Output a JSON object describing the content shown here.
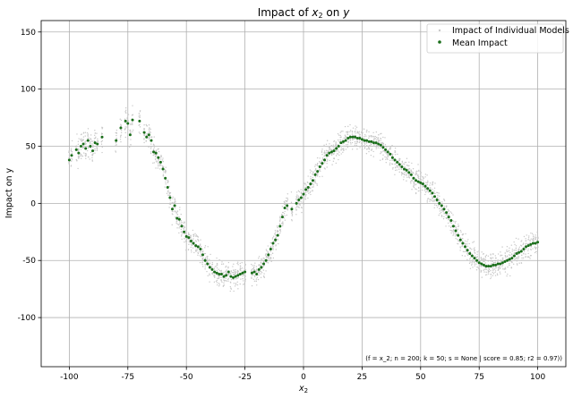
{
  "chart_data": {
    "type": "scatter",
    "title_prefix": "Impact of ",
    "title_x": "x",
    "title_x_sub": "2",
    "title_mid": " on ",
    "title_y": "y",
    "xlabel": "x",
    "xlabel_sub": "2",
    "ylabel": "Impact on y",
    "xlim": [
      -112,
      112
    ],
    "ylim": [
      -143,
      160
    ],
    "xticks": [
      -100,
      -75,
      -50,
      -25,
      0,
      25,
      50,
      75,
      100
    ],
    "xtick_labels": [
      "-100",
      "-75",
      "-50",
      "-25",
      "0",
      "25",
      "50",
      "75",
      "100"
    ],
    "yticks": [
      -100,
      -50,
      0,
      50,
      100,
      150
    ],
    "ytick_labels": [
      "-100",
      "-50",
      "0",
      "50",
      "100",
      "150"
    ],
    "grid": true,
    "legend_position": "top-right",
    "annotation": "(f = x_2; n = 200; k = 50; s = None | score = 0.85; r2 = 0.97))",
    "series": [
      {
        "name": "Impact of Individual Models",
        "color": "#c8c8c8",
        "marker": "small point cloud",
        "spread": 10
      },
      {
        "name": "Mean Impact",
        "color": "#1a6e1a",
        "x": [
          -100,
          -99,
          -97,
          -96,
          -95,
          -94,
          -93,
          -92,
          -91,
          -90,
          -89,
          -88,
          -86,
          -80,
          -78,
          -76,
          -75,
          -74,
          -73,
          -70,
          -68,
          -67,
          -66,
          -65,
          -64,
          -63,
          -62,
          -61,
          -60,
          -59,
          -58,
          -57,
          -56,
          -55,
          -54,
          -53,
          -52,
          -51,
          -50,
          -49,
          -48,
          -47,
          -46,
          -45,
          -44,
          -43,
          -42,
          -41,
          -40,
          -39,
          -38,
          -37,
          -36,
          -35,
          -34,
          -33,
          -32,
          -31,
          -30,
          -29,
          -28,
          -27,
          -26,
          -25,
          -22,
          -21,
          -20,
          -19,
          -18,
          -17,
          -16,
          -15,
          -14,
          -13,
          -12,
          -11,
          -10,
          -9,
          -8,
          -7,
          -5,
          -3,
          -2,
          -1,
          0,
          1,
          2,
          3,
          4,
          5,
          6,
          7,
          8,
          9,
          10,
          11,
          12,
          13,
          14,
          15,
          16,
          17,
          18,
          19,
          20,
          21,
          22,
          23,
          24,
          25,
          26,
          27,
          28,
          29,
          30,
          31,
          32,
          33,
          34,
          35,
          36,
          37,
          38,
          39,
          40,
          41,
          42,
          43,
          44,
          45,
          46,
          47,
          48,
          49,
          50,
          51,
          52,
          53,
          54,
          55,
          56,
          57,
          58,
          59,
          60,
          61,
          62,
          63,
          64,
          65,
          66,
          67,
          68,
          69,
          70,
          71,
          72,
          73,
          74,
          75,
          76,
          77,
          78,
          79,
          80,
          81,
          82,
          83,
          84,
          85,
          86,
          87,
          88,
          89,
          90,
          91,
          92,
          93,
          94,
          95,
          96,
          97,
          98,
          99,
          100
        ],
        "y": [
          38,
          42,
          47,
          44,
          50,
          52,
          48,
          55,
          50,
          46,
          53,
          52,
          58,
          55,
          66,
          72,
          70,
          60,
          73,
          72,
          62,
          58,
          60,
          55,
          45,
          44,
          40,
          36,
          30,
          22,
          14,
          5,
          -5,
          -2,
          -13,
          -14,
          -20,
          -25,
          -29,
          -30,
          -33,
          -35,
          -37,
          -38,
          -40,
          -45,
          -50,
          -53,
          -56,
          -58,
          -60,
          -61,
          -62,
          -62,
          -64,
          -63,
          -60,
          -64,
          -65,
          -64,
          -63,
          -62,
          -61,
          -60,
          -61,
          -60,
          -62,
          -58,
          -56,
          -53,
          -50,
          -45,
          -40,
          -35,
          -32,
          -28,
          -20,
          -12,
          -4,
          -2,
          -5,
          0,
          3,
          5,
          8,
          12,
          14,
          17,
          20,
          25,
          28,
          32,
          35,
          38,
          42,
          44,
          45,
          46,
          48,
          50,
          53,
          54,
          55,
          57,
          58,
          58,
          58,
          57,
          57,
          56,
          55,
          55,
          54,
          54,
          53,
          53,
          52,
          51,
          49,
          47,
          45,
          43,
          40,
          38,
          36,
          34,
          32,
          30,
          29,
          27,
          25,
          22,
          20,
          19,
          18,
          17,
          15,
          13,
          11,
          9,
          6,
          3,
          0,
          -2,
          -5,
          -8,
          -12,
          -15,
          -20,
          -24,
          -28,
          -32,
          -35,
          -38,
          -41,
          -44,
          -46,
          -48,
          -50,
          -52,
          -53,
          -54,
          -55,
          -55,
          -55,
          -54,
          -54,
          -53,
          -53,
          -52,
          -51,
          -50,
          -49,
          -48,
          -46,
          -44,
          -43,
          -42,
          -40,
          -38,
          -37,
          -36,
          -35,
          -35,
          -34
        ]
      }
    ]
  }
}
